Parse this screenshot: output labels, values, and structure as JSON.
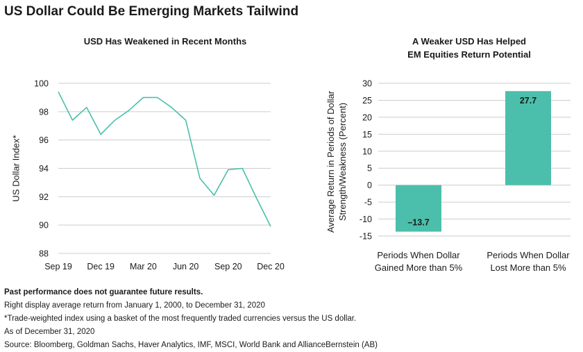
{
  "title": "US Dollar Could Be Emerging Markets Tailwind",
  "colors": {
    "accent": "#4bbfab",
    "grid": "#cccccc",
    "text": "#1a1a1a"
  },
  "chart_data": [
    {
      "type": "line",
      "title": "USD Has Weakened in Recent Months",
      "ylabel": "US Dollar Index*",
      "xlabel": "",
      "ylim": [
        88,
        100
      ],
      "yticks": [
        88,
        90,
        92,
        94,
        96,
        98,
        100
      ],
      "xlim": [
        0,
        15
      ],
      "x_tick_positions": [
        0,
        3,
        6,
        9,
        12,
        15
      ],
      "x_tick_labels": [
        "Sep 19",
        "Dec 19",
        "Mar 20",
        "Jun 20",
        "Sep 20",
        "Dec 20"
      ],
      "grid": true,
      "x": [
        0,
        1,
        2,
        3,
        4,
        5,
        6,
        7,
        8,
        9,
        10,
        11,
        12,
        13,
        14,
        15
      ],
      "values": [
        99.4,
        97.4,
        98.3,
        96.4,
        97.4,
        98.1,
        99.0,
        99.0,
        98.3,
        97.4,
        93.3,
        92.1,
        93.9,
        94.0,
        91.9,
        89.9
      ]
    },
    {
      "type": "bar",
      "title_lines": [
        "A Weaker USD Has Helped",
        "EM Equities Return Potential"
      ],
      "ylabel_lines": [
        "Average Return in Periods of Dollar",
        "Strength/Weakness (Percent)"
      ],
      "ylim": [
        -15,
        30
      ],
      "yticks": [
        -15,
        -10,
        -5,
        0,
        5,
        10,
        15,
        20,
        25,
        30
      ],
      "grid": true,
      "categories": [
        {
          "line1": "Periods When Dollar",
          "line2": "Gained More than 5%"
        },
        {
          "line1": "Periods When Dollar",
          "line2": "Lost More than 5%"
        }
      ],
      "values": [
        -13.7,
        27.7
      ],
      "data_labels": [
        "–13.7",
        "27.7"
      ]
    }
  ],
  "footer": {
    "disclaimer": "Past performance does not guarantee future results.",
    "note1": "Right display average return from January 1, 2000, to December 31, 2020",
    "note2": "*Trade-weighted index using a basket of the most frequently traded currencies versus the US dollar.",
    "note3": "As of December 31, 2020",
    "source": "Source: Bloomberg, Goldman Sachs, Haver Analytics, IMF, MSCI, World Bank and AllianceBernstein (AB)"
  }
}
